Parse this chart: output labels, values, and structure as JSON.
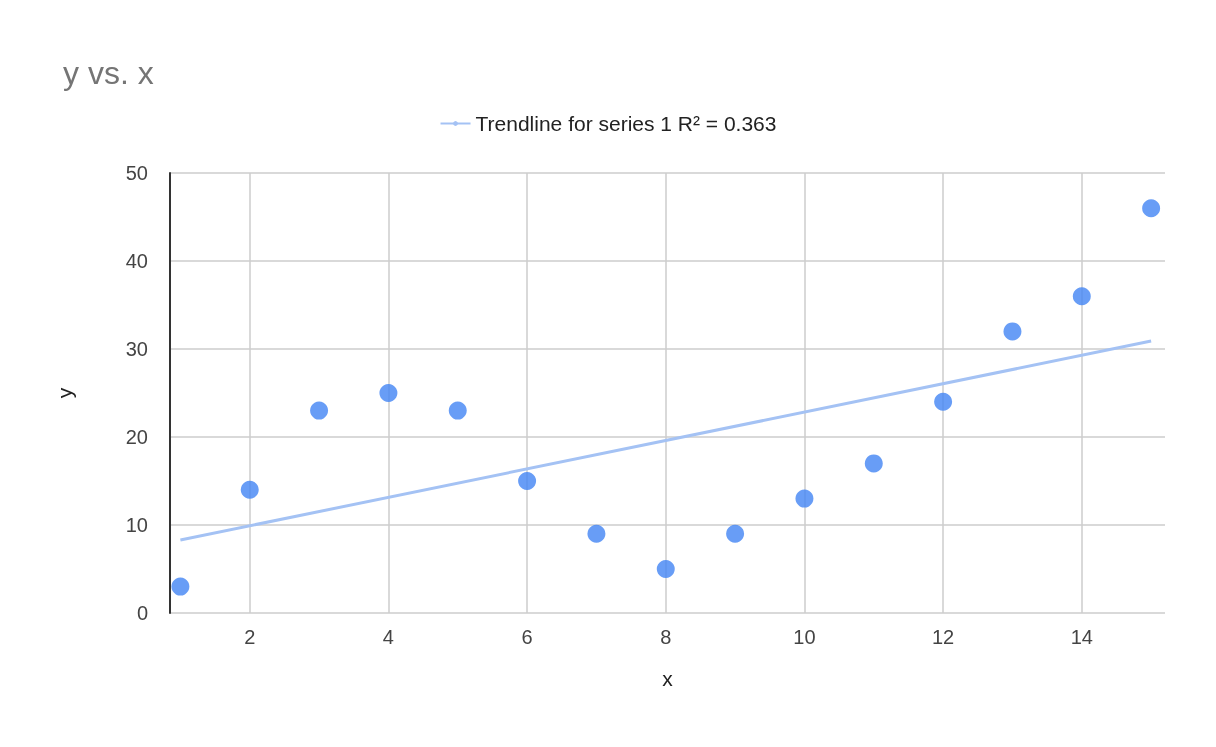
{
  "chart_data": {
    "type": "scatter",
    "title": "y vs. x",
    "xlabel": "x",
    "ylabel": "y",
    "x": [
      1,
      2,
      3,
      4,
      5,
      6,
      7,
      8,
      9,
      10,
      11,
      12,
      13,
      14,
      15
    ],
    "series": [
      {
        "marker": "circle",
        "color": "#4285f4",
        "values": [
          3,
          14,
          23,
          25,
          23,
          15,
          9,
          5,
          9,
          13,
          17,
          24,
          32,
          36,
          46
        ]
      },
      {
        "type": "line",
        "marker": "none",
        "name": "Trendline for series 1 R² = 0.363",
        "color": "#a4c2f4",
        "x": [
          1,
          15
        ],
        "values": [
          8.3,
          30.9
        ]
      }
    ],
    "xlim": [
      0.85,
      15.2
    ],
    "xticks": [
      2,
      4,
      6,
      8,
      10,
      12,
      14
    ],
    "ylim": [
      0,
      50
    ],
    "yticks": [
      0,
      10,
      20,
      30,
      40,
      50
    ],
    "grid": true,
    "legend": "top",
    "line_style": "solid"
  }
}
